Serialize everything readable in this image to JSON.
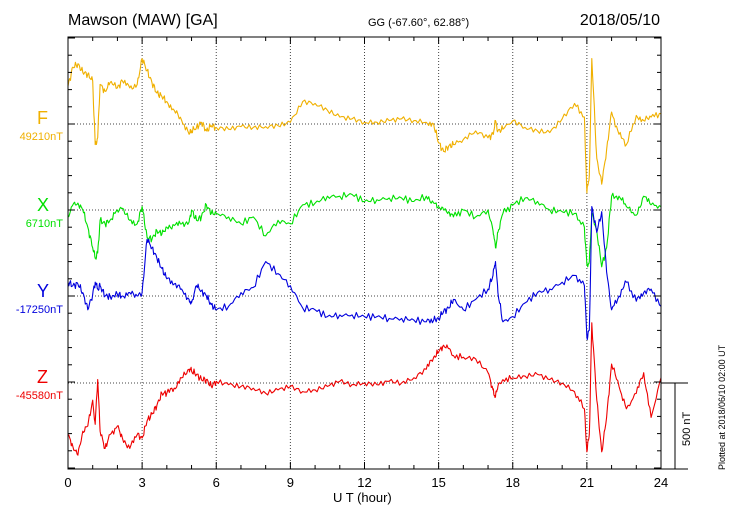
{
  "header": {
    "station": "Mawson (MAW)  [GA]",
    "coords": "GG (-67.60°,  62.88°)",
    "date": "2018/05/10"
  },
  "footer": {
    "plotted": "Plotted at 2018/06/10 02:00 UT"
  },
  "chart_data": {
    "type": "line",
    "xlabel": "U T (hour)",
    "xlim": [
      0,
      24
    ],
    "xticks": [
      "0",
      "3",
      "6",
      "9",
      "12",
      "15",
      "18",
      "21",
      "24"
    ],
    "grid": "dotted",
    "scale_label": "500 nT",
    "scale_nT": 500,
    "x": [
      0,
      0.2,
      0.4,
      0.6,
      0.8,
      1.0,
      1.1,
      1.2,
      1.3,
      1.5,
      1.7,
      2.0,
      2.2,
      2.5,
      2.8,
      3.0,
      3.2,
      3.4,
      3.6,
      3.8,
      4.0,
      4.3,
      4.6,
      4.9,
      5.0,
      5.2,
      5.4,
      5.6,
      5.8,
      6.0,
      6.5,
      7.0,
      7.5,
      8.0,
      8.5,
      9.0,
      9.5,
      10.0,
      10.5,
      11.0,
      11.5,
      12.0,
      12.5,
      13.0,
      13.5,
      14.0,
      14.5,
      14.8,
      15.0,
      15.2,
      15.4,
      15.6,
      16.0,
      16.5,
      17.0,
      17.2,
      17.3,
      17.4,
      17.6,
      18.0,
      18.5,
      19.0,
      19.5,
      20.0,
      20.5,
      20.9,
      21.0,
      21.1,
      21.2,
      21.4,
      21.6,
      21.8,
      22.0,
      22.3,
      22.6,
      23.0,
      23.3,
      23.6,
      24.0
    ],
    "series": [
      {
        "name": "F",
        "baseline_label": "49210nT",
        "color": "#f0b000",
        "values": [
          220,
          330,
          350,
          300,
          290,
          250,
          -120,
          -80,
          230,
          190,
          240,
          210,
          250,
          210,
          230,
          380,
          310,
          240,
          180,
          160,
          130,
          80,
          20,
          -60,
          -40,
          -20,
          10,
          -40,
          -10,
          -20,
          -30,
          -15,
          -20,
          -15,
          -10,
          10,
          130,
          120,
          80,
          40,
          30,
          10,
          10,
          20,
          30,
          20,
          10,
          0,
          -110,
          -160,
          -130,
          -120,
          -90,
          -40,
          -80,
          -60,
          20,
          -40,
          -30,
          20,
          -20,
          -40,
          -50,
          30,
          120,
          40,
          -400,
          -300,
          380,
          -200,
          -350,
          -150,
          70,
          -60,
          -120,
          50,
          20,
          40,
          60
        ]
      },
      {
        "name": "X",
        "baseline_label": "6710nT",
        "color": "#00e000",
        "values": [
          -40,
          30,
          40,
          0,
          -100,
          -220,
          -280,
          -250,
          -60,
          -80,
          -60,
          0,
          10,
          -60,
          -80,
          20,
          -160,
          -170,
          -120,
          -140,
          -100,
          -90,
          -80,
          -70,
          0,
          -60,
          -40,
          30,
          -20,
          -20,
          -40,
          -80,
          -40,
          -150,
          -60,
          -80,
          30,
          40,
          80,
          80,
          90,
          50,
          60,
          70,
          70,
          50,
          80,
          40,
          20,
          0,
          -10,
          -40,
          0,
          -40,
          0,
          -120,
          -220,
          -130,
          -20,
          30,
          70,
          50,
          0,
          -10,
          -20,
          -100,
          -320,
          -300,
          -20,
          -120,
          -330,
          -220,
          80,
          80,
          20,
          -30,
          80,
          30,
          20
        ]
      },
      {
        "name": "Y",
        "baseline_label": "-17250nT",
        "color": "#0000dd",
        "values": [
          80,
          60,
          70,
          20,
          -80,
          10,
          80,
          40,
          60,
          0,
          0,
          10,
          0,
          20,
          0,
          20,
          330,
          280,
          220,
          160,
          100,
          70,
          40,
          -20,
          -40,
          60,
          30,
          0,
          -50,
          -80,
          -60,
          20,
          50,
          200,
          130,
          60,
          -70,
          -80,
          -120,
          -110,
          -110,
          -120,
          -120,
          -130,
          -130,
          -140,
          -150,
          -140,
          -130,
          -90,
          -70,
          -20,
          -80,
          -20,
          40,
          120,
          200,
          20,
          -150,
          -120,
          -40,
          20,
          40,
          80,
          120,
          60,
          -240,
          -200,
          520,
          370,
          490,
          140,
          -80,
          0,
          80,
          -30,
          20,
          40,
          -60
        ]
      },
      {
        "name": "Z",
        "baseline_label": "-45580nT",
        "color": "#ee0000",
        "values": [
          -300,
          -370,
          -420,
          -280,
          -250,
          -100,
          -240,
          20,
          -280,
          -380,
          -300,
          -250,
          -320,
          -380,
          -300,
          -320,
          -220,
          -180,
          -130,
          -60,
          -60,
          -30,
          30,
          80,
          70,
          50,
          20,
          20,
          -20,
          10,
          -10,
          -20,
          -30,
          -60,
          -40,
          -20,
          -50,
          -40,
          -20,
          10,
          -10,
          0,
          -10,
          10,
          0,
          30,
          80,
          150,
          180,
          220,
          200,
          160,
          150,
          140,
          60,
          -40,
          -80,
          -20,
          20,
          30,
          40,
          50,
          20,
          0,
          -50,
          -150,
          -400,
          -300,
          350,
          -100,
          -400,
          -200,
          110,
          -20,
          -150,
          -60,
          60,
          -200,
          30
        ]
      }
    ]
  }
}
